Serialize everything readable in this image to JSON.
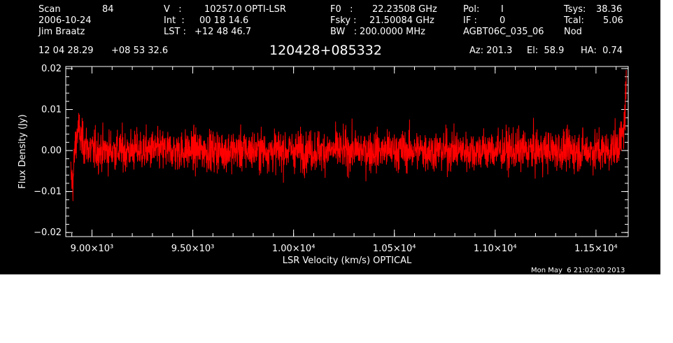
{
  "header": {
    "scan_label": "Scan",
    "scan_number": "84",
    "date": "2006-10-24",
    "observer": "Jim Braatz",
    "v_label": "V   :",
    "v_value": "10257.0 OPTI-LSR",
    "int_label": "Int  :",
    "int_value": "00 18 14.6",
    "lst_label": "LST :",
    "lst_value": "+12 48 46.7",
    "f0_label": "F0   :",
    "f0_value": "22.23508 GHz",
    "fsky_label": "Fsky :",
    "fsky_value": "21.50084 GHz",
    "bw_label": "BW   :",
    "bw_value": "200.0000 MHz",
    "pol_label": "Pol:",
    "pol_value": "I",
    "if_label": "IF :",
    "if_value": "0",
    "project": "AGBT06C_035_06",
    "tsys_label": "Tsys:",
    "tsys_value": "38.36",
    "tcal_label": "Tcal:",
    "tcal_value": "5.06",
    "mode": "Nod",
    "ra": "12 04 28.29",
    "dec": "+08 53 32.6",
    "source": "120428+085332",
    "az": "Az: 201.3",
    "el": "El:  58.9",
    "ha": "HA:  0.74"
  },
  "footer": {
    "timestamp": "Mon May  6 21:02:00 2013"
  },
  "chart_data": {
    "type": "line",
    "title": "120428+085332",
    "xlabel": "LSR Velocity (km/s) OPTICAL",
    "ylabel": "Flux Density (Jy)",
    "xlim": [
      8870,
      11660
    ],
    "ylim": [
      -0.021,
      0.0205
    ],
    "xticks": [
      {
        "value": 9000,
        "label": "9.00×10³"
      },
      {
        "value": 9500,
        "label": "9.50×10³"
      },
      {
        "value": 10000,
        "label": "1.00×10⁴"
      },
      {
        "value": 10500,
        "label": "1.05×10⁴"
      },
      {
        "value": 11000,
        "label": "1.10×10⁴"
      },
      {
        "value": 11500,
        "label": "1.15×10⁴"
      }
    ],
    "yticks": [
      {
        "value": 0.02,
        "label": "0.02"
      },
      {
        "value": 0.01,
        "label": "0.01"
      },
      {
        "value": 0.0,
        "label": "0.00"
      },
      {
        "value": -0.01,
        "label": "−0.01"
      },
      {
        "value": -0.02,
        "label": "−0.02"
      }
    ],
    "series": [
      {
        "color": "#ff0000",
        "x_start": 8895,
        "x_end": 11650,
        "noise_rms": 0.0035,
        "x": [
          8895,
          8905,
          8915,
          8925,
          8935,
          8950,
          8975,
          9000,
          9500,
          10000,
          10500,
          11000,
          11500,
          11560,
          11600,
          11620,
          11635,
          11645,
          11650
        ],
        "y": [
          -0.006,
          -0.008,
          0.0,
          0.004,
          0.005,
          0.002,
          0.001,
          0.0,
          0.0,
          0.0,
          0.0,
          0.0,
          0.0,
          0.0,
          0.001,
          0.002,
          0.004,
          0.01,
          0.016
        ]
      }
    ]
  }
}
